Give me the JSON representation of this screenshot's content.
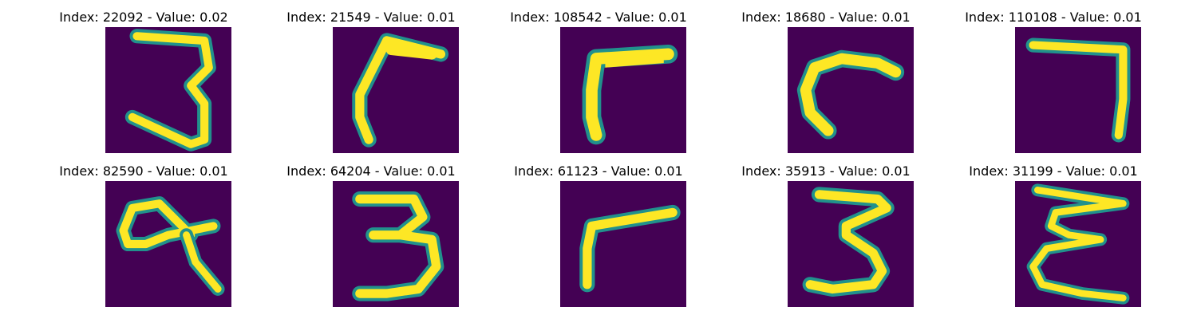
{
  "panels": [
    {
      "title": "Index: 22092 - Value: 0.02",
      "digit_icon": "handwritten-digit-3"
    },
    {
      "title": "Index: 21549 - Value: 0.01",
      "digit_icon": "handwritten-digit-7-curved"
    },
    {
      "title": "Index: 108542 - Value: 0.01",
      "digit_icon": "handwritten-digit-7-thick"
    },
    {
      "title": "Index: 18680 - Value: 0.01",
      "digit_icon": "handwritten-stroke-c"
    },
    {
      "title": "Index: 110108 - Value: 0.01",
      "digit_icon": "handwritten-digit-7"
    },
    {
      "title": "Index: 82590 - Value: 0.01",
      "digit_icon": "handwritten-digit-9-loop"
    },
    {
      "title": "Index: 64204 - Value: 0.01",
      "digit_icon": "handwritten-digit-3"
    },
    {
      "title": "Index: 61123 - Value: 0.01",
      "digit_icon": "handwritten-digit-7-short"
    },
    {
      "title": "Index: 35913 - Value: 0.01",
      "digit_icon": "handwritten-digit-3"
    },
    {
      "title": "Index: 31199 - Value: 0.01",
      "digit_icon": "handwritten-letter-e-reversed"
    }
  ],
  "colors": {
    "background": "#440154",
    "stroke_mid": "#21918c",
    "stroke_core": "#fde725"
  }
}
